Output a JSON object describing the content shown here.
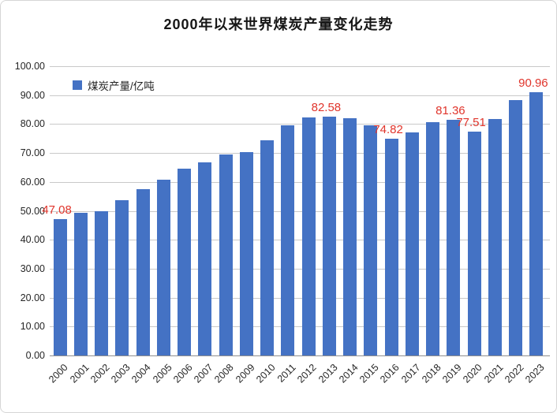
{
  "chart_data": {
    "type": "bar",
    "title": "2000年以来世界煤炭产量变化走势",
    "legend_label": "煤炭产量/亿吨",
    "legend_position": "top-left-inside",
    "categories": [
      "2000",
      "2001",
      "2002",
      "2003",
      "2004",
      "2005",
      "2006",
      "2007",
      "2008",
      "2009",
      "2010",
      "2011",
      "2012",
      "2013",
      "2014",
      "2015",
      "2016",
      "2017",
      "2018",
      "2019",
      "2020",
      "2021",
      "2022",
      "2023"
    ],
    "values": [
      47.08,
      49.3,
      49.8,
      53.6,
      57.4,
      60.9,
      64.5,
      66.9,
      69.4,
      70.4,
      74.5,
      79.5,
      82.2,
      82.58,
      82.0,
      79.7,
      74.82,
      77.0,
      80.8,
      81.36,
      77.51,
      81.8,
      88.4,
      90.96
    ],
    "point_labels": {
      "2000": "47.08",
      "2013": "82.58",
      "2016": "74.82",
      "2019": "81.36",
      "2020": "77.51",
      "2023": "90.96"
    },
    "ylim": [
      0,
      100
    ],
    "ytick_labels": [
      "0.00",
      "10.00",
      "20.00",
      "30.00",
      "40.00",
      "50.00",
      "60.00",
      "70.00",
      "80.00",
      "90.00",
      "100.00"
    ],
    "grid": true,
    "colors": {
      "bar": "#4472c4",
      "point_label": "#e0342b",
      "axis_text": "#262626",
      "gridline": "#c9c9c9",
      "axis_line": "#8f8f8f",
      "title": "#161616",
      "frame_border": "#d6d6d6"
    }
  }
}
